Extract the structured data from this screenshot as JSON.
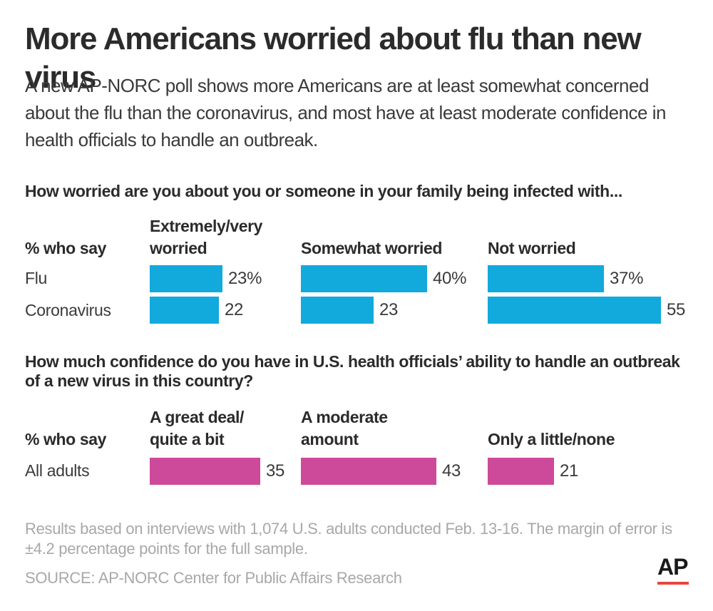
{
  "title": "More Americans worried about flu than new virus",
  "subtitle": "A new AP-NORC poll shows more Americans are at least somewhat concerned about the flu than the coronavirus, and most have at least moderate confidence in health officials to handle an outbreak.",
  "colors": {
    "worry_bar": "#12a9dc",
    "confidence_bar": "#cd4a9a",
    "note_text": "#a8a8a8",
    "ap_rule": "#e8473c"
  },
  "chart_data": [
    {
      "type": "bar",
      "title": "How worried are you about you or someone in your family being infected with...",
      "row_header": "% who say",
      "categories": [
        "Flu",
        "Coronavirus"
      ],
      "value_labels_first_row": [
        "23%",
        "40%",
        "37%"
      ],
      "series": [
        {
          "name": "Extremely/very worried",
          "values": [
            23,
            22
          ],
          "labels": [
            "23%",
            "22"
          ]
        },
        {
          "name": "Somewhat worried",
          "values": [
            40,
            23
          ],
          "labels": [
            "40%",
            "23"
          ]
        },
        {
          "name": "Not worried",
          "values": [
            37,
            55
          ],
          "labels": [
            "37%",
            "55"
          ]
        }
      ],
      "xlim": [
        0,
        55
      ]
    },
    {
      "type": "bar",
      "title": "How much confidence do you have in U.S. health officials’ ability to handle an outbreak of a new virus in this country?",
      "row_header": "% who say",
      "categories": [
        "All adults"
      ],
      "series": [
        {
          "name": "A great deal/\nquite a bit",
          "values": [
            35
          ],
          "labels": [
            "35"
          ]
        },
        {
          "name": "A moderate\namount",
          "values": [
            43
          ],
          "labels": [
            "43"
          ]
        },
        {
          "name": "Only a little/none",
          "values": [
            21
          ],
          "labels": [
            "21"
          ]
        }
      ],
      "xlim": [
        0,
        55
      ]
    }
  ],
  "footnote": "Results based on interviews with 1,074 U.S. adults conducted Feb. 13-16. The margin of error is ±4.2 percentage points for the full sample.",
  "source": "SOURCE: AP-NORC Center for Public Affairs Research",
  "logo": {
    "text": "AP",
    "icon": "ap-logo-icon"
  }
}
